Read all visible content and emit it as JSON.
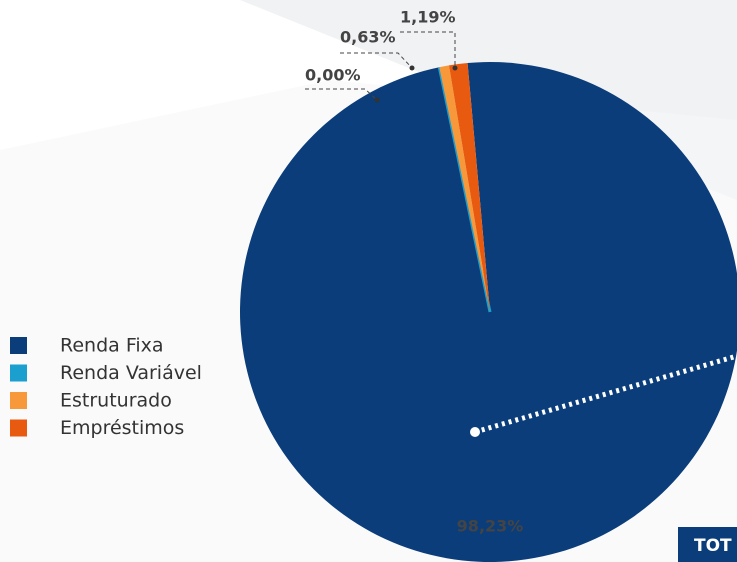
{
  "chart_data": {
    "type": "pie",
    "categories": [
      "Renda Fixa",
      "Renda Variável",
      "Estruturado",
      "Empréstimos"
    ],
    "values": [
      98.23,
      0.0,
      0.63,
      1.19
    ],
    "value_labels": [
      "98,23%",
      "0,00%",
      "0,63%",
      "1,19%"
    ],
    "colors": [
      "#0a3d7a",
      "#1a9fcf",
      "#f7993a",
      "#e85a0f"
    ],
    "legend": "left"
  },
  "total_label": "TOT"
}
